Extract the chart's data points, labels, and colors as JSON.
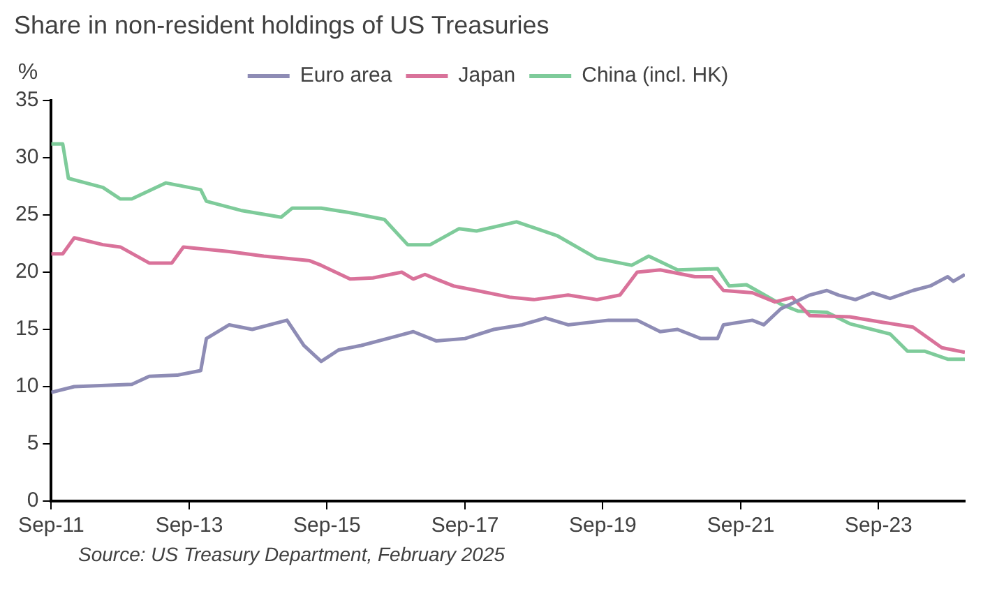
{
  "chart_data": {
    "type": "line",
    "title": "Share in non-resident holdings of US Treasuries",
    "ylabel": "%",
    "annotations": [
      "Source: US Treasury Department, February 2025"
    ],
    "xlim": [
      "2011-09",
      "2024-12"
    ],
    "xticks": [
      {
        "value": "2011-09",
        "label": "Sep-11"
      },
      {
        "value": "2013-09",
        "label": "Sep-13"
      },
      {
        "value": "2015-09",
        "label": "Sep-15"
      },
      {
        "value": "2017-09",
        "label": "Sep-17"
      },
      {
        "value": "2019-09",
        "label": "Sep-19"
      },
      {
        "value": "2021-09",
        "label": "Sep-21"
      },
      {
        "value": "2023-09",
        "label": "Sep-23"
      }
    ],
    "ylim": [
      0,
      35
    ],
    "yticks": [
      0,
      5,
      10,
      15,
      20,
      25,
      30,
      35
    ],
    "grid": false,
    "legend": "top",
    "marker": "none",
    "line_style": "solid",
    "series": [
      {
        "name": "Euro area",
        "color": "#8e8cb5",
        "x": [
          "2011-09",
          "2012-01",
          "2012-11",
          "2013-02",
          "2013-07",
          "2013-11",
          "2013-12",
          "2014-04",
          "2014-08",
          "2015-02",
          "2015-05",
          "2015-08",
          "2015-11",
          "2016-03",
          "2016-09",
          "2016-12",
          "2017-04",
          "2017-09",
          "2018-02",
          "2018-07",
          "2018-11",
          "2019-03",
          "2019-10",
          "2020-03",
          "2020-07",
          "2020-10",
          "2021-02",
          "2021-05",
          "2021-06",
          "2021-11",
          "2022-01",
          "2022-04",
          "2022-09",
          "2022-12",
          "2023-02",
          "2023-05",
          "2023-08",
          "2023-11",
          "2024-03",
          "2024-06",
          "2024-09",
          "2024-10",
          "2024-12"
        ],
        "values": [
          9.5,
          10.0,
          10.2,
          10.9,
          11.0,
          11.4,
          14.2,
          15.4,
          15.0,
          15.8,
          13.6,
          12.2,
          13.2,
          13.6,
          14.4,
          14.8,
          14.0,
          14.2,
          15.0,
          15.4,
          16.0,
          15.4,
          15.8,
          15.8,
          14.8,
          15.0,
          14.2,
          14.2,
          15.4,
          15.8,
          15.4,
          16.8,
          18.0,
          18.4,
          18.0,
          17.6,
          18.2,
          17.7,
          18.4,
          18.8,
          19.6,
          19.2,
          19.8
        ]
      },
      {
        "name": "Japan",
        "color": "#d9729a",
        "x": [
          "2011-09",
          "2011-11",
          "2012-01",
          "2012-06",
          "2012-09",
          "2013-02",
          "2013-06",
          "2013-08",
          "2014-04",
          "2014-10",
          "2015-06",
          "2015-08",
          "2016-01",
          "2016-05",
          "2016-10",
          "2016-12",
          "2017-02",
          "2017-04",
          "2017-07",
          "2017-11",
          "2018-05",
          "2018-09",
          "2019-03",
          "2019-08",
          "2019-12",
          "2020-03",
          "2020-07",
          "2021-01",
          "2021-04",
          "2021-06",
          "2021-11",
          "2022-03",
          "2022-06",
          "2022-09",
          "2023-04",
          "2023-10",
          "2024-03",
          "2024-08",
          "2024-12"
        ],
        "values": [
          21.6,
          21.6,
          23.0,
          22.4,
          22.2,
          20.8,
          20.8,
          22.2,
          21.8,
          21.4,
          21.0,
          20.6,
          19.4,
          19.5,
          20.0,
          19.4,
          19.8,
          19.4,
          18.8,
          18.4,
          17.8,
          17.6,
          18.0,
          17.6,
          18.0,
          20.0,
          20.2,
          19.6,
          19.6,
          18.4,
          18.2,
          17.4,
          17.8,
          16.2,
          16.1,
          15.6,
          15.2,
          13.4,
          13.0
        ]
      },
      {
        "name": "China (incl. HK)",
        "color": "#7ecb9a",
        "x": [
          "2011-09",
          "2011-11",
          "2011-12",
          "2012-06",
          "2012-09",
          "2012-11",
          "2013-05",
          "2013-11",
          "2013-12",
          "2014-06",
          "2015-01",
          "2015-03",
          "2015-08",
          "2016-01",
          "2016-05",
          "2016-07",
          "2016-11",
          "2017-03",
          "2017-08",
          "2017-11",
          "2018-06",
          "2019-01",
          "2019-08",
          "2020-02",
          "2020-05",
          "2020-10",
          "2021-05",
          "2021-07",
          "2021-10",
          "2022-04",
          "2022-07",
          "2022-12",
          "2023-04",
          "2023-11",
          "2024-02",
          "2024-05",
          "2024-09",
          "2024-12"
        ],
        "values": [
          31.2,
          31.2,
          28.2,
          27.4,
          26.4,
          26.4,
          27.8,
          27.2,
          26.2,
          25.4,
          24.8,
          25.6,
          25.6,
          25.2,
          24.8,
          24.6,
          22.4,
          22.4,
          23.8,
          23.6,
          24.4,
          23.2,
          21.2,
          20.6,
          21.4,
          20.2,
          20.3,
          18.8,
          18.9,
          17.2,
          16.6,
          16.5,
          15.5,
          14.6,
          13.1,
          13.1,
          12.4,
          12.4
        ]
      }
    ]
  }
}
